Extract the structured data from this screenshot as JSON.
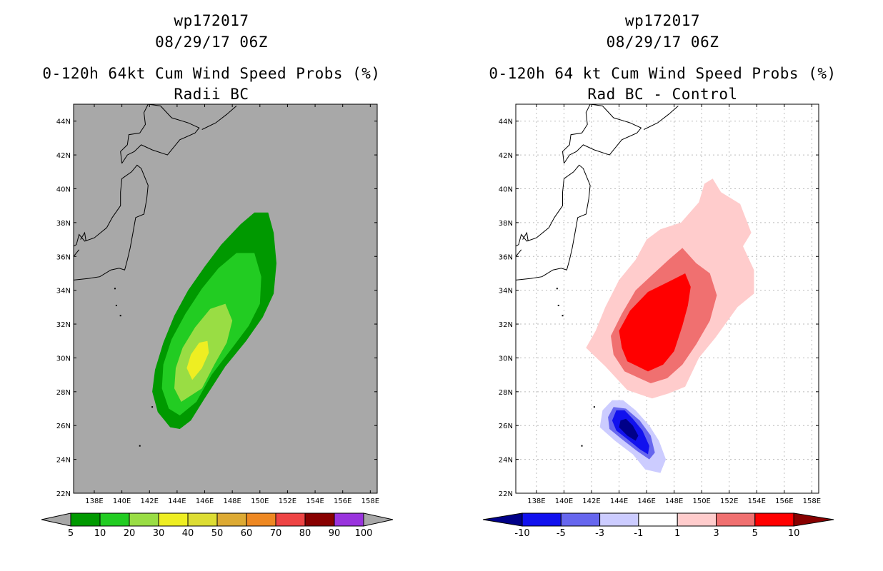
{
  "colors": {
    "map_bg_left": "#a8a8a8",
    "prob_5": "#009900",
    "prob_10": "#22cc22",
    "prob_20": "#99dd44",
    "prob_30": "#eeee22",
    "prob_40": "#dddd33",
    "prob_50": "#ddaa33",
    "prob_60": "#ee8822",
    "prob_70": "#ee4444",
    "prob_80": "#880000",
    "prob_90": "#9933dd",
    "diff_neg10": "#000088",
    "diff_neg5": "#1111ee",
    "diff_neg3": "#6666ee",
    "diff_neg1": "#ccccff",
    "diff_0": "#ffffff",
    "diff_pos1": "#ffcccc",
    "diff_pos3": "#f07070",
    "diff_pos5": "#ff0000",
    "diff_pos10": "#880000"
  },
  "chart_data": [
    {
      "type": "heatmap",
      "panel": "left",
      "title_line1": "wp172017",
      "title_line2": "08/29/17 06Z",
      "title_line3": "0-120h 64kt Cum Wind Speed Probs (%)",
      "title_line4": "Radii BC",
      "xlabel": "",
      "ylabel": "",
      "xlim": [
        136.5,
        158.5
      ],
      "ylim": [
        22,
        45
      ],
      "grid": false,
      "x_ticks": [
        "138E",
        "140E",
        "142E",
        "144E",
        "146E",
        "148E",
        "150E",
        "152E",
        "154E",
        "156E",
        "158E"
      ],
      "x_tick_values": [
        138,
        140,
        142,
        144,
        146,
        148,
        150,
        152,
        154,
        156,
        158
      ],
      "y_ticks": [
        "22N",
        "24N",
        "26N",
        "28N",
        "30N",
        "32N",
        "34N",
        "36N",
        "38N",
        "40N",
        "42N",
        "44N"
      ],
      "y_tick_values": [
        22,
        24,
        26,
        28,
        30,
        32,
        34,
        36,
        38,
        40,
        42,
        44
      ],
      "colorbar_labels": [
        "5",
        "10",
        "20",
        "30",
        "40",
        "50",
        "60",
        "70",
        "80",
        "90",
        "100"
      ],
      "contours": [
        {
          "level": 5,
          "points": [
            [
              144.2,
              25.8
            ],
            [
              143.5,
              25.9
            ],
            [
              142.6,
              26.8
            ],
            [
              142.2,
              28.0
            ],
            [
              142.4,
              29.3
            ],
            [
              143.0,
              30.9
            ],
            [
              143.8,
              32.5
            ],
            [
              144.8,
              34.0
            ],
            [
              146.0,
              35.4
            ],
            [
              147.2,
              36.7
            ],
            [
              148.6,
              37.9
            ],
            [
              149.6,
              38.6
            ],
            [
              150.6,
              38.6
            ],
            [
              151.0,
              37.4
            ],
            [
              151.2,
              35.6
            ],
            [
              151.0,
              33.8
            ],
            [
              150.2,
              32.4
            ],
            [
              149.0,
              31.0
            ],
            [
              147.5,
              29.5
            ],
            [
              146.0,
              27.6
            ],
            [
              145.0,
              26.3
            ],
            [
              144.2,
              25.8
            ]
          ]
        },
        {
          "level": 10,
          "points": [
            [
              144.2,
              26.6
            ],
            [
              143.4,
              27.0
            ],
            [
              142.9,
              28.2
            ],
            [
              143.0,
              29.6
            ],
            [
              143.6,
              31.1
            ],
            [
              144.6,
              32.6
            ],
            [
              145.8,
              34.1
            ],
            [
              147.0,
              35.3
            ],
            [
              148.3,
              36.2
            ],
            [
              149.6,
              36.2
            ],
            [
              150.1,
              34.8
            ],
            [
              150.0,
              33.2
            ],
            [
              149.2,
              31.9
            ],
            [
              148.0,
              30.6
            ],
            [
              146.5,
              29.0
            ],
            [
              145.4,
              27.4
            ],
            [
              144.2,
              26.6
            ]
          ]
        },
        {
          "level": 20,
          "points": [
            [
              144.3,
              27.4
            ],
            [
              143.8,
              28.2
            ],
            [
              143.9,
              29.4
            ],
            [
              144.4,
              30.6
            ],
            [
              145.3,
              31.8
            ],
            [
              146.4,
              32.9
            ],
            [
              147.5,
              33.2
            ],
            [
              148.0,
              32.2
            ],
            [
              147.6,
              30.9
            ],
            [
              146.7,
              29.6
            ],
            [
              145.8,
              28.2
            ],
            [
              144.3,
              27.4
            ]
          ]
        },
        {
          "level": 30,
          "points": [
            [
              145.1,
              28.7
            ],
            [
              144.7,
              29.4
            ],
            [
              145.0,
              30.2
            ],
            [
              145.6,
              30.9
            ],
            [
              146.2,
              31.0
            ],
            [
              146.3,
              30.3
            ],
            [
              145.8,
              29.4
            ],
            [
              145.1,
              28.7
            ]
          ]
        }
      ]
    },
    {
      "type": "heatmap",
      "panel": "right",
      "title_line1": "wp172017",
      "title_line2": "08/29/17 06Z",
      "title_line3": "0-120h 64 kt Cum Wind Speed Probs (%)",
      "title_line4": "Rad BC - Control",
      "xlabel": "",
      "ylabel": "",
      "xlim": [
        136.5,
        158.5
      ],
      "ylim": [
        22,
        45
      ],
      "grid": true,
      "x_ticks": [
        "138E",
        "140E",
        "142E",
        "144E",
        "146E",
        "148E",
        "150E",
        "152E",
        "154E",
        "156E",
        "158E"
      ],
      "x_tick_values": [
        138,
        140,
        142,
        144,
        146,
        148,
        150,
        152,
        154,
        156,
        158
      ],
      "y_ticks": [
        "22N",
        "24N",
        "26N",
        "28N",
        "30N",
        "32N",
        "34N",
        "36N",
        "38N",
        "40N",
        "42N",
        "44N"
      ],
      "y_tick_values": [
        22,
        24,
        26,
        28,
        30,
        32,
        34,
        36,
        38,
        40,
        42,
        44
      ],
      "colorbar_labels": [
        "-10",
        "-5",
        "-3",
        "-1",
        "1",
        "3",
        "5",
        "10"
      ],
      "contours": [
        {
          "level": 1,
          "sign": "pos",
          "points": [
            [
              146.4,
              27.6
            ],
            [
              144.6,
              28.1
            ],
            [
              143.0,
              29.5
            ],
            [
              141.6,
              30.6
            ],
            [
              142.3,
              31.6
            ],
            [
              143.0,
              33.0
            ],
            [
              144.0,
              34.6
            ],
            [
              145.2,
              35.8
            ],
            [
              146.0,
              37.0
            ],
            [
              147.0,
              37.6
            ],
            [
              148.5,
              38.0
            ],
            [
              149.8,
              39.2
            ],
            [
              150.2,
              40.3
            ],
            [
              150.8,
              40.6
            ],
            [
              151.4,
              39.8
            ],
            [
              152.8,
              39.1
            ],
            [
              153.6,
              37.4
            ],
            [
              153.0,
              36.6
            ],
            [
              153.8,
              35.2
            ],
            [
              153.8,
              33.8
            ],
            [
              152.6,
              33.0
            ],
            [
              151.0,
              31.2
            ],
            [
              149.8,
              30.0
            ],
            [
              148.8,
              28.3
            ],
            [
              147.6,
              27.9
            ],
            [
              146.4,
              27.6
            ]
          ]
        },
        {
          "level": 3,
          "sign": "pos",
          "points": [
            [
              146.3,
              28.5
            ],
            [
              144.4,
              29.2
            ],
            [
              143.6,
              30.2
            ],
            [
              143.4,
              31.3
            ],
            [
              144.2,
              32.6
            ],
            [
              145.2,
              34.0
            ],
            [
              146.4,
              34.9
            ],
            [
              147.6,
              35.8
            ],
            [
              148.6,
              36.5
            ],
            [
              149.6,
              35.6
            ],
            [
              150.6,
              35.0
            ],
            [
              151.1,
              33.7
            ],
            [
              150.6,
              32.2
            ],
            [
              149.6,
              30.8
            ],
            [
              148.6,
              29.6
            ],
            [
              147.5,
              28.8
            ],
            [
              146.3,
              28.5
            ]
          ]
        },
        {
          "level": 5,
          "sign": "pos",
          "points": [
            [
              146.1,
              29.2
            ],
            [
              144.6,
              29.8
            ],
            [
              144.2,
              30.6
            ],
            [
              144.0,
              31.6
            ],
            [
              144.8,
              32.8
            ],
            [
              146.1,
              33.9
            ],
            [
              147.6,
              34.5
            ],
            [
              148.8,
              35.0
            ],
            [
              149.2,
              34.2
            ],
            [
              149.0,
              33.1
            ],
            [
              148.6,
              31.9
            ],
            [
              148.0,
              30.4
            ],
            [
              147.2,
              29.6
            ],
            [
              146.1,
              29.2
            ]
          ]
        },
        {
          "level": -1,
          "sign": "neg",
          "points": [
            [
              143.5,
              27.5
            ],
            [
              142.8,
              26.9
            ],
            [
              142.6,
              25.9
            ],
            [
              143.7,
              25.1
            ],
            [
              145.0,
              24.3
            ],
            [
              145.9,
              23.4
            ],
            [
              147.0,
              23.2
            ],
            [
              147.4,
              24.0
            ],
            [
              146.9,
              25.1
            ],
            [
              146.2,
              26.0
            ],
            [
              145.2,
              26.9
            ],
            [
              144.3,
              27.5
            ],
            [
              143.5,
              27.5
            ]
          ]
        },
        {
          "level": -3,
          "sign": "neg",
          "points": [
            [
              143.6,
              27.1
            ],
            [
              143.2,
              26.5
            ],
            [
              143.3,
              25.8
            ],
            [
              144.2,
              25.2
            ],
            [
              145.3,
              24.5
            ],
            [
              146.2,
              24.0
            ],
            [
              146.6,
              24.4
            ],
            [
              146.3,
              25.4
            ],
            [
              145.5,
              26.3
            ],
            [
              144.5,
              27.0
            ],
            [
              143.6,
              27.1
            ]
          ]
        },
        {
          "level": -5,
          "sign": "neg",
          "points": [
            [
              143.8,
              26.9
            ],
            [
              143.5,
              26.3
            ],
            [
              143.8,
              25.7
            ],
            [
              144.6,
              25.2
            ],
            [
              145.5,
              24.6
            ],
            [
              146.1,
              24.3
            ],
            [
              146.2,
              24.8
            ],
            [
              145.7,
              25.7
            ],
            [
              145.0,
              26.4
            ],
            [
              144.4,
              26.9
            ],
            [
              143.8,
              26.9
            ]
          ]
        },
        {
          "level": -10,
          "sign": "neg",
          "points": [
            [
              144.1,
              26.3
            ],
            [
              144.0,
              25.9
            ],
            [
              144.6,
              25.4
            ],
            [
              145.2,
              25.1
            ],
            [
              145.4,
              25.4
            ],
            [
              145.0,
              26.0
            ],
            [
              144.5,
              26.4
            ],
            [
              144.1,
              26.3
            ]
          ]
        }
      ]
    }
  ]
}
